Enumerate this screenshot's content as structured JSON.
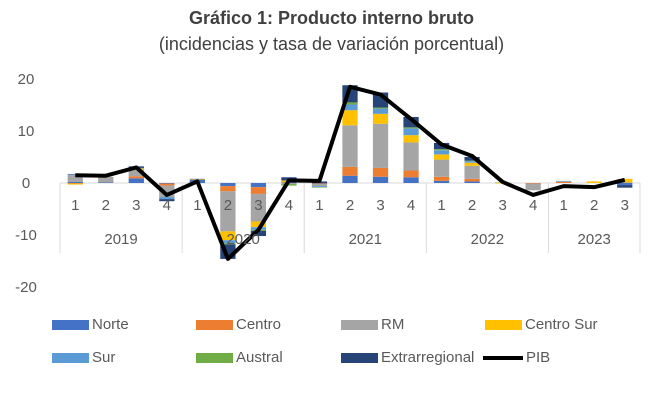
{
  "title": "Gráfico 1: Producto interno bruto",
  "subtitle": "(incidencias y tasa de variación porcentual)",
  "chart_data": {
    "type": "bar",
    "stacked": true,
    "title": "Gráfico 1: Producto interno bruto",
    "subtitle": "(incidencias y tasa de variación porcentual)",
    "xlabel": "",
    "ylabel": "",
    "ylim": [
      -20,
      20
    ],
    "yticks": [
      20,
      10,
      0,
      -10,
      -20
    ],
    "grid": false,
    "legend_position": "bottom",
    "categories": [
      "1",
      "2",
      "3",
      "4",
      "1",
      "2",
      "3",
      "4",
      "1",
      "2",
      "3",
      "4",
      "1",
      "2",
      "3",
      "4",
      "1",
      "2",
      "3"
    ],
    "year_groups": [
      {
        "label": "2019",
        "count": 4
      },
      {
        "label": "2020",
        "count": 4
      },
      {
        "label": "2021",
        "count": 4
      },
      {
        "label": "2022",
        "count": 4
      },
      {
        "label": "2023",
        "count": 3
      }
    ],
    "series": [
      {
        "name": "Norte",
        "color": "#4472C4",
        "values": [
          0.2,
          0.1,
          0.9,
          -0.1,
          0.6,
          -0.6,
          -0.8,
          0.1,
          -0.1,
          1.4,
          1.2,
          1.1,
          0.4,
          0.3,
          0.0,
          0.0,
          0.0,
          0.0,
          -0.4
        ]
      },
      {
        "name": "Centro",
        "color": "#ED7D31",
        "values": [
          -0.1,
          0.0,
          0.4,
          -0.4,
          0.0,
          -1.0,
          -1.3,
          0.0,
          -0.1,
          1.7,
          1.7,
          1.3,
          0.8,
          0.5,
          0.0,
          -0.1,
          0.2,
          0.0,
          0.0
        ]
      },
      {
        "name": "RM",
        "color": "#A5A5A5",
        "values": [
          1.3,
          1.1,
          1.2,
          -2.2,
          0.0,
          -7.7,
          -5.3,
          -0.2,
          -0.4,
          8.0,
          8.5,
          5.4,
          3.3,
          2.5,
          0.0,
          -1.3,
          0.1,
          0.0,
          0.1
        ]
      },
      {
        "name": "Centro Sur",
        "color": "#FFC000",
        "values": [
          -0.2,
          0.0,
          0.3,
          0.0,
          0.1,
          -1.7,
          -1.1,
          0.4,
          0.0,
          2.9,
          1.9,
          1.4,
          1.0,
          0.6,
          -0.1,
          0.0,
          0.0,
          0.3,
          0.7
        ]
      },
      {
        "name": "Sur",
        "color": "#5B9BD5",
        "values": [
          0.1,
          0.0,
          0.1,
          -0.4,
          0.0,
          -0.6,
          -0.5,
          0.0,
          -0.2,
          1.1,
          1.0,
          1.3,
          0.8,
          0.3,
          0.0,
          0.0,
          0.1,
          0.0,
          0.0
        ]
      },
      {
        "name": "Austral",
        "color": "#70AD47",
        "values": [
          0.0,
          0.0,
          0.0,
          0.0,
          0.0,
          -0.2,
          -0.2,
          -0.3,
          -0.1,
          0.4,
          0.2,
          0.2,
          0.2,
          0.1,
          0.1,
          0.0,
          0.0,
          0.0,
          0.0
        ]
      },
      {
        "name": "Extrarregional",
        "color": "#264478",
        "values": [
          0.1,
          0.0,
          0.3,
          -0.4,
          0.1,
          -2.8,
          -1.0,
          0.6,
          0.3,
          3.3,
          2.9,
          2.0,
          1.2,
          0.7,
          0.0,
          0.0,
          0.0,
          0.0,
          -0.5
        ]
      }
    ],
    "line_series": {
      "name": "PIB",
      "color": "#000000",
      "values": [
        1.5,
        1.4,
        3.0,
        -2.3,
        0.3,
        -14.6,
        -9.0,
        0.5,
        0.4,
        18.5,
        17.0,
        12.3,
        7.4,
        5.2,
        0.2,
        -2.3,
        -0.6,
        -0.8,
        0.6
      ]
    }
  },
  "legend": {
    "items": [
      {
        "label": "Norte",
        "color": "#4472C4",
        "kind": "bar"
      },
      {
        "label": "Centro",
        "color": "#ED7D31",
        "kind": "bar"
      },
      {
        "label": "RM",
        "color": "#A5A5A5",
        "kind": "bar"
      },
      {
        "label": "Centro Sur",
        "color": "#FFC000",
        "kind": "bar"
      },
      {
        "label": "Sur",
        "color": "#5B9BD5",
        "kind": "bar"
      },
      {
        "label": "Austral",
        "color": "#70AD47",
        "kind": "bar"
      },
      {
        "label": "Extrarregional",
        "color": "#264478",
        "kind": "bar"
      },
      {
        "label": "PIB",
        "color": "#000000",
        "kind": "line"
      }
    ]
  }
}
